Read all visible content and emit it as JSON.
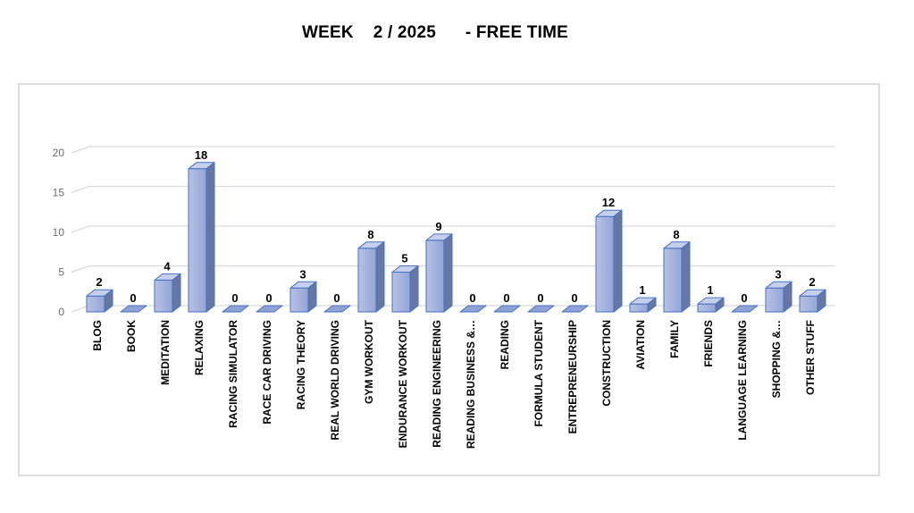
{
  "title": "WEEK    2 / 2025      - FREE TIME",
  "chart_data": {
    "type": "bar",
    "bar_style": "3d-column",
    "title": "WEEK 2 / 2025 - FREE TIME",
    "categories": [
      "BLOG",
      "BOOK",
      "MEDITATION",
      "RELAXING",
      "RACING SIMULATOR",
      "RACE CAR DRIVING",
      "RACING THEORY",
      "REAL WORLD DRIVING",
      "GYM WORKOUT",
      "ENDURANCE WORKOUT",
      "READING ENGINEERING",
      "READING BUSINESS &…",
      "READING",
      "FORMULA STUDENT",
      "ENTREPRENEURSHIP",
      "CONSTRUCTION",
      "AVIATION",
      "FAMILY",
      "FRIENDS",
      "LANGUAGE LEARNING",
      "SHOPPING &…",
      "OTHER STUFF"
    ],
    "values": [
      2,
      0,
      4,
      18,
      0,
      0,
      3,
      0,
      8,
      5,
      9,
      0,
      0,
      0,
      0,
      12,
      1,
      8,
      1,
      0,
      3,
      2
    ],
    "data_labels": true,
    "xlabel": "",
    "ylabel": "",
    "ylim": [
      0,
      20
    ],
    "yticks": [
      0,
      5,
      10,
      15,
      20
    ],
    "grid": true,
    "legend": false,
    "colors": {
      "bar_front_light": "#b7c1e5",
      "bar_front_dark": "#93a5d6",
      "bar_top": "#c6cfeb",
      "bar_side": "#6777a3",
      "bar_zero": "#8fa2d4",
      "bar_border": "#4472c4",
      "gridline": "#d9d9d9",
      "tick_label": "#6e6e6e",
      "data_label": "#000000",
      "category_label": "#000000",
      "chart_border": "#dcdcdc"
    }
  }
}
